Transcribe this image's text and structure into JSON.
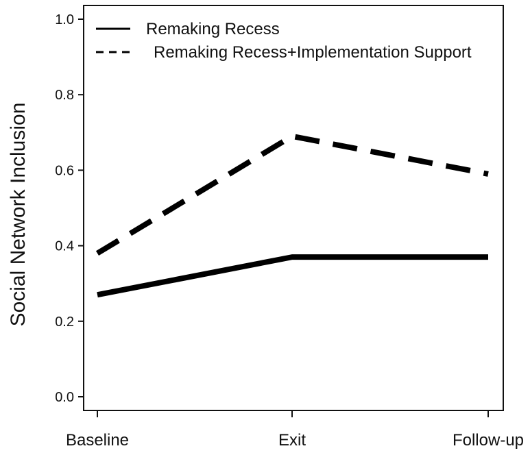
{
  "chart_data": {
    "type": "line",
    "title": "",
    "xlabel": "",
    "ylabel": "Social Network Inclusion",
    "categories": [
      "Baseline",
      "Exit",
      "Follow-up"
    ],
    "ylim": [
      0.0,
      1.0
    ],
    "yticks": [
      0.0,
      0.2,
      0.4,
      0.6,
      0.8,
      1.0
    ],
    "ytick_labels": [
      "0.0",
      "0.2",
      "0.4",
      "0.6",
      "0.8",
      "1.0"
    ],
    "grid": false,
    "legend_position": "top-left",
    "series": [
      {
        "name": "Remaking Recess",
        "line_style": "solid",
        "color": "#000000",
        "values": [
          0.27,
          0.37,
          0.37
        ]
      },
      {
        "name": "Remaking Recess+Implementation Support",
        "line_style": "dashed",
        "color": "#000000",
        "values": [
          0.38,
          0.69,
          0.59
        ]
      }
    ]
  }
}
